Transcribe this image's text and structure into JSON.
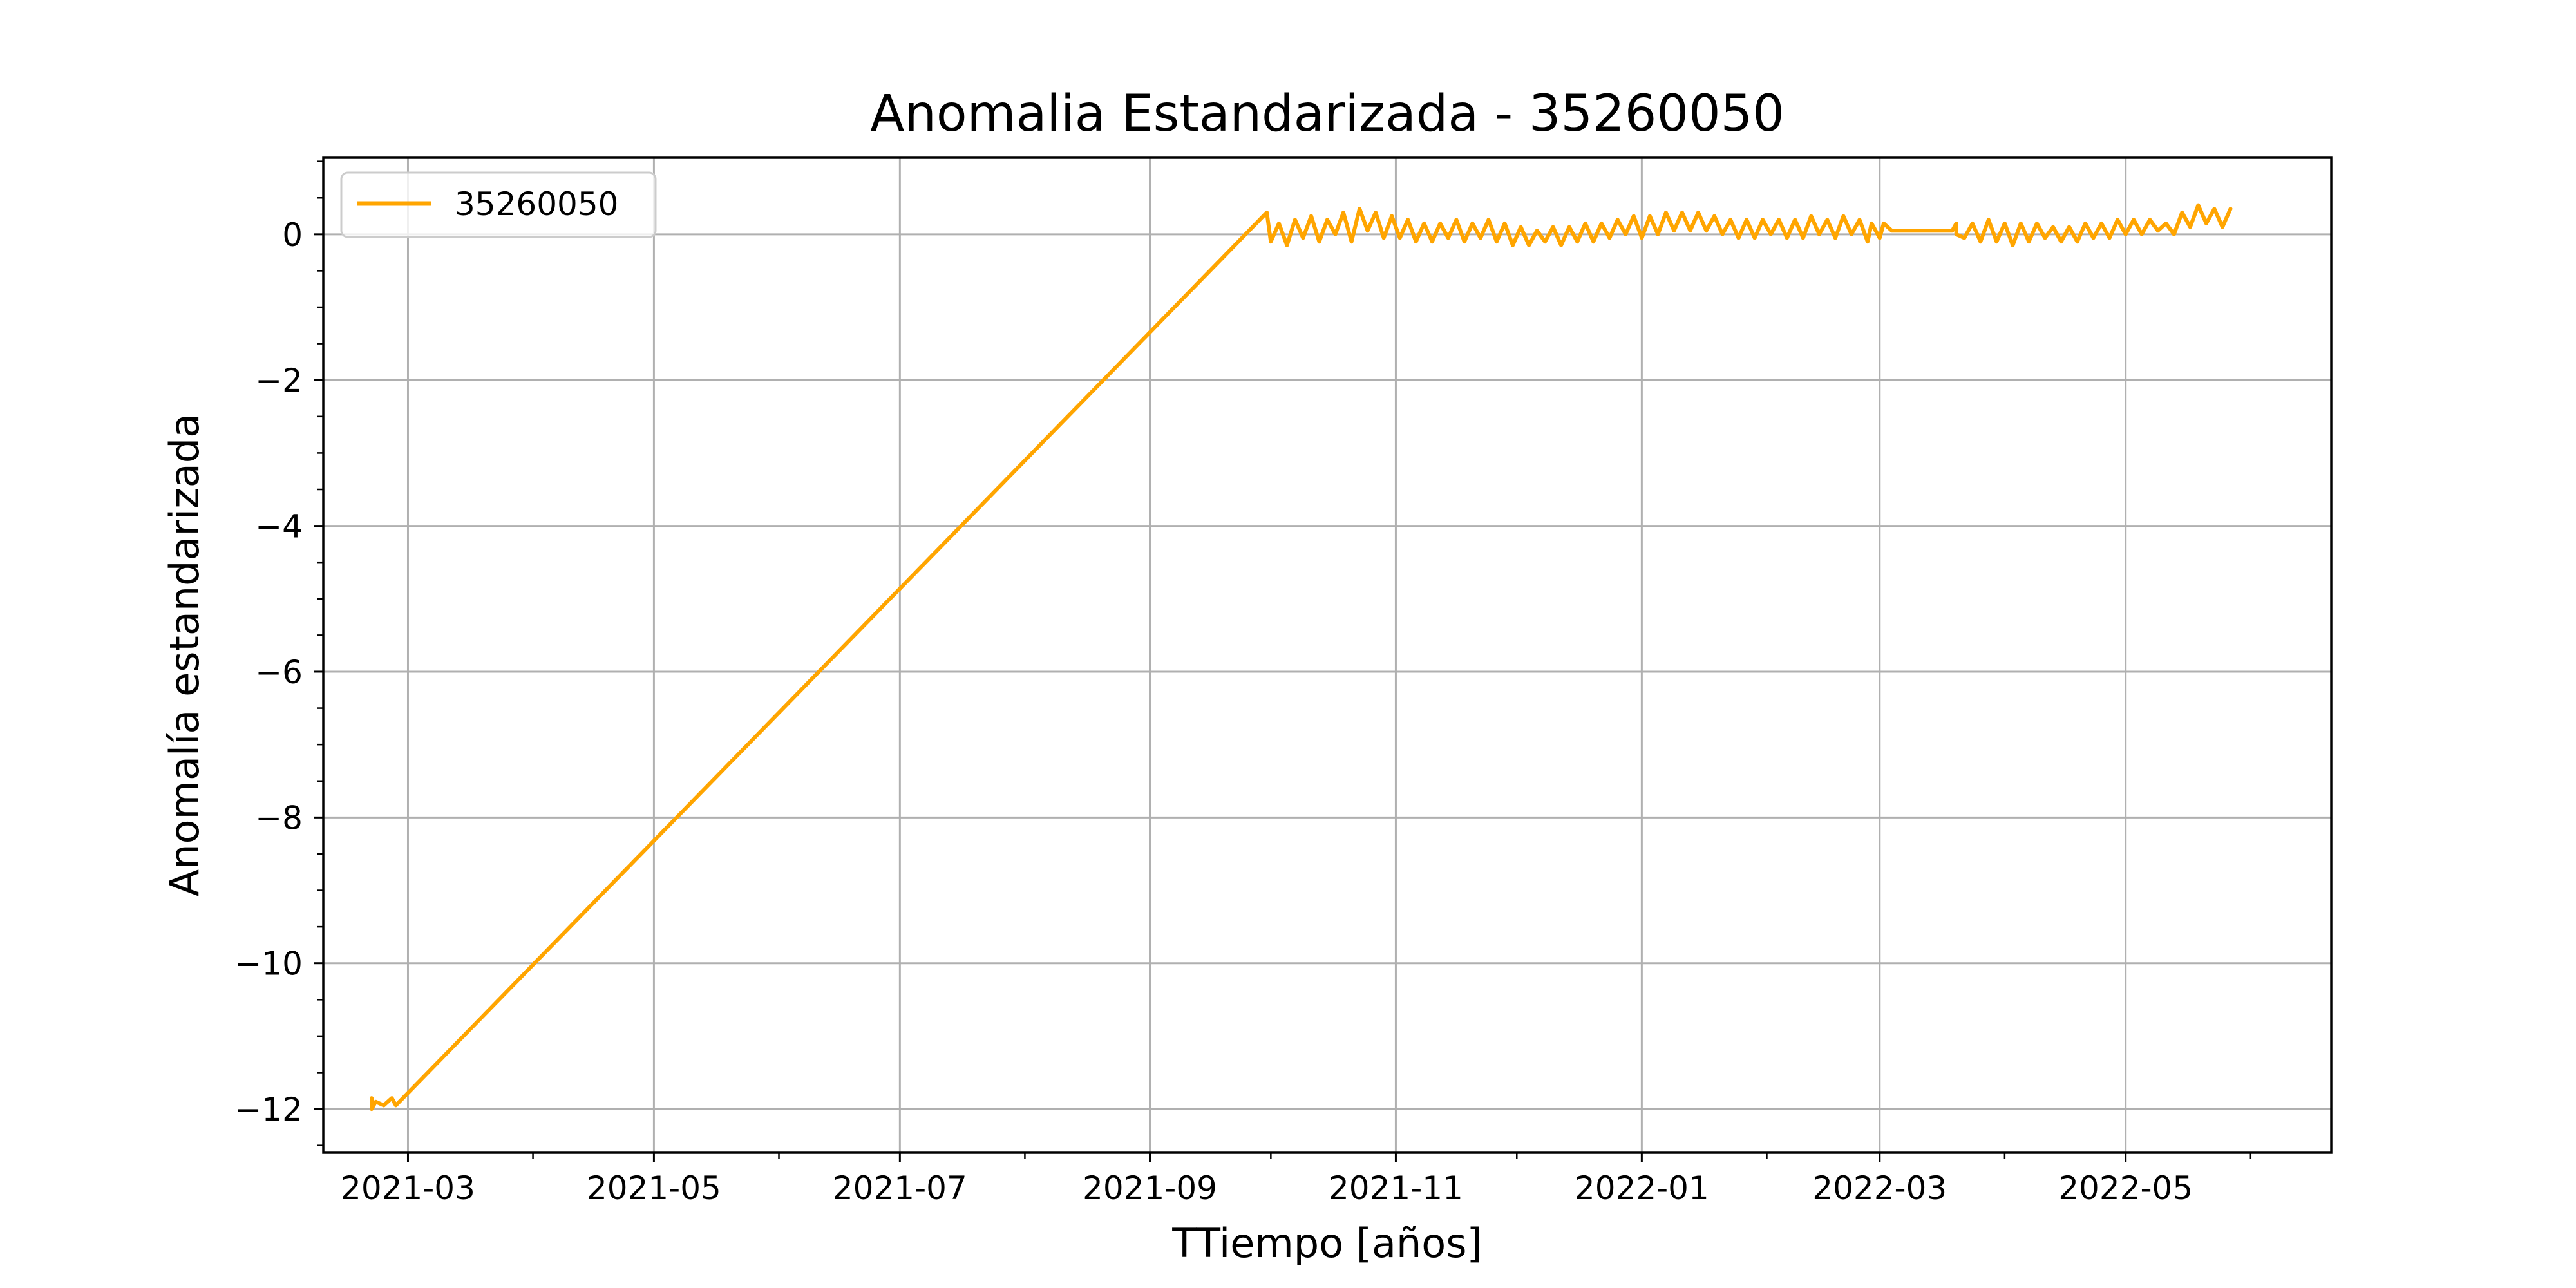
{
  "chart_data": {
    "type": "line",
    "title": "Anomalia Estandarizada - 35260050",
    "xlabel": "TTiempo [años]",
    "ylabel": "Anomalía estandarizada",
    "x_type": "date",
    "xlim": [
      "2021-02-08",
      "2022-06-21"
    ],
    "ylim": [
      -12.6,
      1.05
    ],
    "grid": true,
    "legend": "upper-left",
    "x_ticks": [
      {
        "value": "2021-03-01",
        "label": "2021-03"
      },
      {
        "value": "2021-05-01",
        "label": "2021-05"
      },
      {
        "value": "2021-07-01",
        "label": "2021-07"
      },
      {
        "value": "2021-09-01",
        "label": "2021-09"
      },
      {
        "value": "2021-11-01",
        "label": "2021-11"
      },
      {
        "value": "2022-01-01",
        "label": "2022-01"
      },
      {
        "value": "2022-03-01",
        "label": "2022-03"
      },
      {
        "value": "2022-05-01",
        "label": "2022-05"
      }
    ],
    "y_ticks": [
      {
        "value": 0,
        "label": "0"
      },
      {
        "value": -2,
        "label": "−2"
      },
      {
        "value": -4,
        "label": "−4"
      },
      {
        "value": -6,
        "label": "−6"
      },
      {
        "value": -8,
        "label": "−8"
      },
      {
        "value": -10,
        "label": "−10"
      },
      {
        "value": -12,
        "label": "−12"
      }
    ],
    "series": [
      {
        "name": "35260050",
        "color": "#FFA500",
        "points": [
          {
            "x": "2021-02-20",
            "y": -11.85
          },
          {
            "x": "2021-02-20",
            "y": -12.0
          },
          {
            "x": "2021-02-21",
            "y": -11.9
          },
          {
            "x": "2021-02-23",
            "y": -11.95
          },
          {
            "x": "2021-02-25",
            "y": -11.85
          },
          {
            "x": "2021-02-26",
            "y": -11.95
          },
          {
            "x": "2021-09-30",
            "y": 0.3
          },
          {
            "x": "2021-10-01",
            "y": -0.1
          },
          {
            "x": "2021-10-03",
            "y": 0.15
          },
          {
            "x": "2021-10-05",
            "y": -0.15
          },
          {
            "x": "2021-10-07",
            "y": 0.2
          },
          {
            "x": "2021-10-09",
            "y": -0.05
          },
          {
            "x": "2021-10-11",
            "y": 0.25
          },
          {
            "x": "2021-10-13",
            "y": -0.1
          },
          {
            "x": "2021-10-15",
            "y": 0.2
          },
          {
            "x": "2021-10-17",
            "y": 0.0
          },
          {
            "x": "2021-10-19",
            "y": 0.3
          },
          {
            "x": "2021-10-21",
            "y": -0.1
          },
          {
            "x": "2021-10-23",
            "y": 0.35
          },
          {
            "x": "2021-10-25",
            "y": 0.05
          },
          {
            "x": "2021-10-27",
            "y": 0.3
          },
          {
            "x": "2021-10-29",
            "y": -0.05
          },
          {
            "x": "2021-10-31",
            "y": 0.25
          },
          {
            "x": "2021-11-02",
            "y": -0.05
          },
          {
            "x": "2021-11-04",
            "y": 0.2
          },
          {
            "x": "2021-11-06",
            "y": -0.1
          },
          {
            "x": "2021-11-08",
            "y": 0.15
          },
          {
            "x": "2021-11-10",
            "y": -0.1
          },
          {
            "x": "2021-11-12",
            "y": 0.15
          },
          {
            "x": "2021-11-14",
            "y": -0.05
          },
          {
            "x": "2021-11-16",
            "y": 0.2
          },
          {
            "x": "2021-11-18",
            "y": -0.1
          },
          {
            "x": "2021-11-20",
            "y": 0.15
          },
          {
            "x": "2021-11-22",
            "y": -0.05
          },
          {
            "x": "2021-11-24",
            "y": 0.2
          },
          {
            "x": "2021-11-26",
            "y": -0.1
          },
          {
            "x": "2021-11-28",
            "y": 0.15
          },
          {
            "x": "2021-11-30",
            "y": -0.15
          },
          {
            "x": "2021-12-02",
            "y": 0.1
          },
          {
            "x": "2021-12-04",
            "y": -0.15
          },
          {
            "x": "2021-12-06",
            "y": 0.05
          },
          {
            "x": "2021-12-08",
            "y": -0.1
          },
          {
            "x": "2021-12-10",
            "y": 0.1
          },
          {
            "x": "2021-12-12",
            "y": -0.15
          },
          {
            "x": "2021-12-14",
            "y": 0.1
          },
          {
            "x": "2021-12-16",
            "y": -0.1
          },
          {
            "x": "2021-12-18",
            "y": 0.15
          },
          {
            "x": "2021-12-20",
            "y": -0.1
          },
          {
            "x": "2021-12-22",
            "y": 0.15
          },
          {
            "x": "2021-12-24",
            "y": -0.05
          },
          {
            "x": "2021-12-26",
            "y": 0.2
          },
          {
            "x": "2021-12-28",
            "y": 0.0
          },
          {
            "x": "2021-12-30",
            "y": 0.25
          },
          {
            "x": "2022-01-01",
            "y": -0.05
          },
          {
            "x": "2022-01-03",
            "y": 0.25
          },
          {
            "x": "2022-01-05",
            "y": 0.0
          },
          {
            "x": "2022-01-07",
            "y": 0.3
          },
          {
            "x": "2022-01-09",
            "y": 0.05
          },
          {
            "x": "2022-01-11",
            "y": 0.3
          },
          {
            "x": "2022-01-13",
            "y": 0.05
          },
          {
            "x": "2022-01-15",
            "y": 0.3
          },
          {
            "x": "2022-01-17",
            "y": 0.05
          },
          {
            "x": "2022-01-19",
            "y": 0.25
          },
          {
            "x": "2022-01-21",
            "y": 0.0
          },
          {
            "x": "2022-01-23",
            "y": 0.2
          },
          {
            "x": "2022-01-25",
            "y": -0.05
          },
          {
            "x": "2022-01-27",
            "y": 0.2
          },
          {
            "x": "2022-01-29",
            "y": -0.05
          },
          {
            "x": "2022-01-31",
            "y": 0.2
          },
          {
            "x": "2022-02-02",
            "y": 0.0
          },
          {
            "x": "2022-02-04",
            "y": 0.2
          },
          {
            "x": "2022-02-06",
            "y": -0.05
          },
          {
            "x": "2022-02-08",
            "y": 0.2
          },
          {
            "x": "2022-02-10",
            "y": -0.05
          },
          {
            "x": "2022-02-12",
            "y": 0.25
          },
          {
            "x": "2022-02-14",
            "y": 0.0
          },
          {
            "x": "2022-02-16",
            "y": 0.2
          },
          {
            "x": "2022-02-18",
            "y": -0.05
          },
          {
            "x": "2022-02-20",
            "y": 0.25
          },
          {
            "x": "2022-02-22",
            "y": 0.0
          },
          {
            "x": "2022-02-24",
            "y": 0.2
          },
          {
            "x": "2022-02-26",
            "y": -0.1
          },
          {
            "x": "2022-02-27",
            "y": 0.15
          },
          {
            "x": "2022-03-01",
            "y": -0.05
          },
          {
            "x": "2022-03-02",
            "y": 0.15
          },
          {
            "x": "2022-03-04",
            "y": 0.05
          },
          {
            "x": "2022-03-19",
            "y": 0.05
          },
          {
            "x": "2022-03-20",
            "y": 0.15
          },
          {
            "x": "2022-03-20",
            "y": 0.0
          },
          {
            "x": "2022-03-22",
            "y": -0.05
          },
          {
            "x": "2022-03-24",
            "y": 0.15
          },
          {
            "x": "2022-03-26",
            "y": -0.1
          },
          {
            "x": "2022-03-28",
            "y": 0.2
          },
          {
            "x": "2022-03-30",
            "y": -0.1
          },
          {
            "x": "2022-04-01",
            "y": 0.15
          },
          {
            "x": "2022-04-03",
            "y": -0.15
          },
          {
            "x": "2022-04-05",
            "y": 0.15
          },
          {
            "x": "2022-04-07",
            "y": -0.1
          },
          {
            "x": "2022-04-09",
            "y": 0.15
          },
          {
            "x": "2022-04-11",
            "y": -0.05
          },
          {
            "x": "2022-04-13",
            "y": 0.1
          },
          {
            "x": "2022-04-15",
            "y": -0.1
          },
          {
            "x": "2022-04-17",
            "y": 0.1
          },
          {
            "x": "2022-04-19",
            "y": -0.1
          },
          {
            "x": "2022-04-21",
            "y": 0.15
          },
          {
            "x": "2022-04-23",
            "y": -0.05
          },
          {
            "x": "2022-04-25",
            "y": 0.15
          },
          {
            "x": "2022-04-27",
            "y": -0.05
          },
          {
            "x": "2022-04-29",
            "y": 0.2
          },
          {
            "x": "2022-05-01",
            "y": 0.0
          },
          {
            "x": "2022-05-03",
            "y": 0.2
          },
          {
            "x": "2022-05-05",
            "y": 0.0
          },
          {
            "x": "2022-05-07",
            "y": 0.2
          },
          {
            "x": "2022-05-09",
            "y": 0.05
          },
          {
            "x": "2022-05-11",
            "y": 0.15
          },
          {
            "x": "2022-05-13",
            "y": 0.0
          },
          {
            "x": "2022-05-15",
            "y": 0.3
          },
          {
            "x": "2022-05-17",
            "y": 0.1
          },
          {
            "x": "2022-05-19",
            "y": 0.4
          },
          {
            "x": "2022-05-21",
            "y": 0.15
          },
          {
            "x": "2022-05-23",
            "y": 0.35
          },
          {
            "x": "2022-05-25",
            "y": 0.1
          },
          {
            "x": "2022-05-27",
            "y": 0.35
          }
        ]
      }
    ]
  }
}
